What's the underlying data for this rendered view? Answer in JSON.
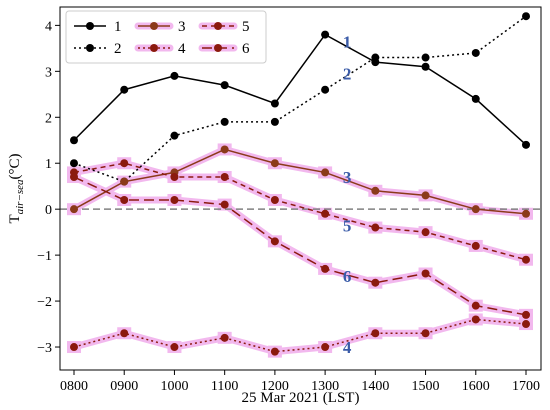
{
  "chart_data": {
    "type": "line",
    "xlabel": "25 Mar 2021 (LST)",
    "ylabel": "T",
    "ylabel_sub": "air−sea",
    "ylabel_unit": "(°C)",
    "categories": [
      "0800",
      "0900",
      "1000",
      "1100",
      "1200",
      "1300",
      "1400",
      "1500",
      "1600",
      "1700"
    ],
    "ylim": [
      -3.5,
      4.4
    ],
    "yticks": [
      -3,
      -2,
      -1,
      0,
      1,
      2,
      3,
      4
    ],
    "ytick_labels": [
      "−3",
      "−2",
      "−1",
      "0",
      "1",
      "2",
      "3",
      "4"
    ],
    "reference_line": {
      "y": 0,
      "style": "dashed",
      "color": "#808080"
    },
    "grid": false,
    "legend": {
      "placement": "top-left",
      "columns": 3
    },
    "series": [
      {
        "name": "1",
        "values": [
          1.5,
          2.6,
          2.9,
          2.7,
          2.3,
          3.8,
          3.2,
          3.1,
          2.4,
          1.4
        ],
        "color": "#000000",
        "style": "solid",
        "halo": false
      },
      {
        "name": "2",
        "values": [
          1.0,
          0.6,
          1.6,
          1.9,
          1.9,
          2.6,
          3.3,
          3.3,
          3.4,
          4.2
        ],
        "color": "#000000",
        "style": "dotted",
        "halo": false
      },
      {
        "name": "3",
        "values": [
          0.0,
          0.6,
          0.8,
          1.3,
          1.0,
          0.8,
          0.4,
          0.3,
          0.0,
          -0.1
        ],
        "color": "#8b3a1a",
        "style": "solid",
        "halo": true
      },
      {
        "name": "4",
        "values": [
          -3.0,
          -2.7,
          -3.0,
          -2.8,
          -3.1,
          -3.0,
          -2.7,
          -2.7,
          -2.4,
          -2.5
        ],
        "color": "#8b1a0e",
        "style": "dotted",
        "halo": true
      },
      {
        "name": "5",
        "values": [
          0.8,
          1.0,
          0.7,
          0.7,
          0.2,
          -0.1,
          -0.4,
          -0.5,
          -0.8,
          -1.1
        ],
        "color": "#8b1a0e",
        "style": "dashed",
        "halo": true
      },
      {
        "name": "6",
        "values": [
          0.7,
          0.2,
          0.2,
          0.1,
          -0.7,
          -1.3,
          -1.6,
          -1.4,
          -2.1,
          -2.3
        ],
        "color": "#8b1a0e",
        "style": "longdash",
        "halo": true
      }
    ],
    "annotations": [
      {
        "text": "1",
        "x": "1300",
        "y": 3.65,
        "color": "#3a5ba8"
      },
      {
        "text": "2",
        "x": "1300",
        "y": 2.95,
        "color": "#3a5ba8"
      },
      {
        "text": "3",
        "x": "1300",
        "y": 0.7,
        "color": "#3a5ba8"
      },
      {
        "text": "5",
        "x": "1300",
        "y": -0.35,
        "color": "#3a5ba8"
      },
      {
        "text": "6",
        "x": "1300",
        "y": -1.45,
        "color": "#3a5ba8"
      },
      {
        "text": "4",
        "x": "1300",
        "y": -3.0,
        "color": "#3a5ba8"
      }
    ],
    "halo_color": "#f2b8ee"
  }
}
